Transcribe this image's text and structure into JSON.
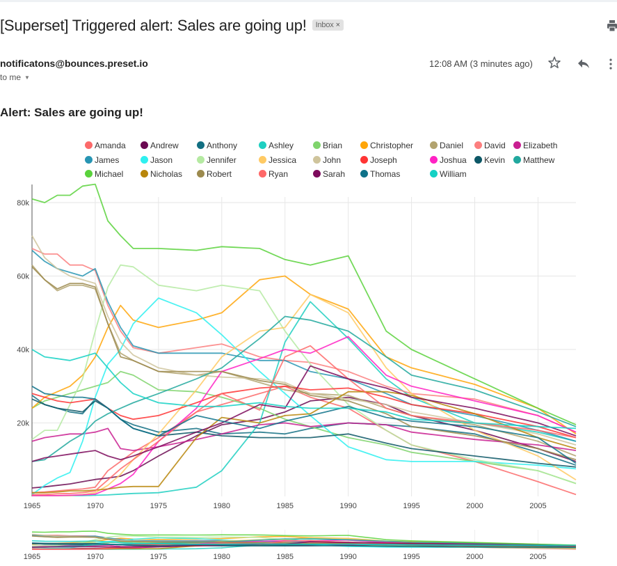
{
  "email": {
    "subject": "[Superset] Triggered alert: Sales are going up!",
    "label_badge": "Inbox",
    "label_remove": "×",
    "sender": "notificatons@bounces.preset.io",
    "recipient": "to me",
    "timestamp": "12:08 AM (3 minutes ago)",
    "icons": [
      "print-icon",
      "star-icon",
      "reply-icon",
      "more-vert-icon",
      "chevron-down-icon"
    ],
    "body_heading": "Alert: Sales are going up!"
  },
  "chart_data": {
    "type": "line",
    "title": "",
    "xlabel": "",
    "ylabel": "",
    "x_range": [
      1965,
      2008
    ],
    "ylim": [
      0,
      85000
    ],
    "x_ticks": [
      "1965",
      "1970",
      "1975",
      "1980",
      "1985",
      "1990",
      "1995",
      "2000",
      "2005"
    ],
    "y_ticks": [
      "20k",
      "40k",
      "60k",
      "80k"
    ],
    "grid": true,
    "legend_position": "top",
    "has_range_overview": true,
    "anchor_years": [
      1965,
      1966,
      1967,
      1968,
      1969,
      1970,
      1971,
      1972,
      1973,
      1975,
      1978,
      1980,
      1983,
      1985,
      1987,
      1990,
      1993,
      1995,
      2000,
      2005,
      2008
    ],
    "series": [
      {
        "name": "Amanda",
        "color": "#fc6a6a",
        "values": [
          1000,
          1200,
          1500,
          1800,
          2000,
          2500,
          7000,
          9500,
          12000,
          16000,
          23000,
          25000,
          28000,
          30000,
          27000,
          24000,
          18000,
          14000,
          9500,
          4000,
          500
        ]
      },
      {
        "name": "Andrew",
        "color": "#6b0a52",
        "values": [
          2300,
          2600,
          3000,
          3400,
          4000,
          4600,
          5000,
          5500,
          7000,
          11000,
          16500,
          19500,
          21000,
          23000,
          26000,
          27000,
          25000,
          22000,
          18000,
          13000,
          9500
        ]
      },
      {
        "name": "Anthony",
        "color": "#126f82",
        "values": [
          27500,
          25000,
          24000,
          23000,
          22500,
          26500,
          24000,
          21000,
          19500,
          17500,
          18500,
          17000,
          17500,
          17000,
          18500,
          20000,
          19500,
          19000,
          17000,
          12000,
          8500
        ]
      },
      {
        "name": "Ashley",
        "color": "#1fcfc1",
        "values": [
          200,
          200,
          200,
          200,
          200,
          300,
          400,
          600,
          800,
          1000,
          2500,
          7000,
          20000,
          42000,
          53000,
          43000,
          32000,
          27000,
          20000,
          17500,
          15000
        ]
      },
      {
        "name": "Brian",
        "color": "#7fd46c",
        "values": [
          24000,
          26000,
          27000,
          28000,
          29000,
          30000,
          31000,
          34000,
          33000,
          29000,
          28500,
          27000,
          24000,
          21000,
          19000,
          16000,
          14000,
          12000,
          9500,
          7000,
          3500
        ]
      },
      {
        "name": "Christopher",
        "color": "#ffa60a",
        "values": [
          24000,
          27000,
          28500,
          30000,
          33000,
          38000,
          46000,
          52000,
          48000,
          46000,
          48000,
          50000,
          59000,
          60000,
          55000,
          51000,
          38000,
          35000,
          30500,
          24000,
          17000
        ]
      },
      {
        "name": "Daniel",
        "color": "#b2a36f",
        "values": [
          63000,
          59000,
          56000,
          57500,
          57500,
          56500,
          47000,
          39000,
          37000,
          34000,
          33000,
          34000,
          31000,
          29000,
          28000,
          27500,
          24000,
          22000,
          19500,
          15000,
          11000
        ]
      },
      {
        "name": "David",
        "color": "#fc7f7f",
        "values": [
          67500,
          66000,
          66000,
          63000,
          63000,
          61500,
          52000,
          45000,
          40500,
          39000,
          40500,
          41500,
          38000,
          37000,
          36500,
          34000,
          30000,
          28000,
          26500,
          22000,
          17500
        ]
      },
      {
        "name": "Elizabeth",
        "color": "#c91f91",
        "values": [
          15000,
          16000,
          16500,
          17000,
          17000,
          17500,
          18500,
          13000,
          12500,
          13500,
          15500,
          17000,
          19500,
          20000,
          19000,
          20000,
          19500,
          17500,
          15500,
          14000,
          12500
        ]
      },
      {
        "name": "James",
        "color": "#2795b3",
        "values": [
          67000,
          64000,
          62000,
          61000,
          60000,
          62000,
          53000,
          46000,
          41000,
          39000,
          39000,
          39000,
          37000,
          37000,
          34000,
          32000,
          28000,
          25000,
          22000,
          18000,
          15000
        ]
      },
      {
        "name": "Jason",
        "color": "#2ef0f0",
        "values": [
          500,
          3000,
          5000,
          6500,
          15000,
          27000,
          36000,
          40000,
          47000,
          54000,
          50000,
          44000,
          34000,
          28000,
          22000,
          13500,
          10000,
          9500,
          9500,
          8500,
          7500
        ]
      },
      {
        "name": "Jennifer",
        "color": "#b5eaa2",
        "values": [
          15500,
          18000,
          18000,
          25000,
          32000,
          45000,
          57000,
          63000,
          62500,
          57500,
          56000,
          57500,
          56000,
          45000,
          36000,
          25000,
          18000,
          14000,
          10000,
          7000,
          3500
        ]
      },
      {
        "name": "Jessica",
        "color": "#ffca64",
        "values": [
          200,
          200,
          200,
          200,
          500,
          1000,
          3000,
          6000,
          10000,
          17000,
          29000,
          38000,
          45000,
          46000,
          55000,
          50000,
          35000,
          28000,
          18000,
          11000,
          4500
        ]
      },
      {
        "name": "John",
        "color": "#cfc49c",
        "values": [
          71000,
          65000,
          62000,
          60000,
          59000,
          58000,
          49000,
          42000,
          38500,
          35000,
          33000,
          32500,
          32000,
          31000,
          28000,
          26500,
          25000,
          23000,
          20000,
          17000,
          14000
        ]
      },
      {
        "name": "Joseph",
        "color": "#ff3434",
        "values": [
          28000,
          27000,
          26000,
          25500,
          26000,
          26500,
          24000,
          22000,
          21000,
          22000,
          25500,
          28000,
          29500,
          30000,
          29000,
          29500,
          27000,
          25000,
          22500,
          19000,
          16000
        ]
      },
      {
        "name": "Joshua",
        "color": "#ff22c4",
        "values": [
          200,
          200,
          200,
          300,
          400,
          600,
          2000,
          3500,
          6000,
          15000,
          24000,
          34000,
          37500,
          40000,
          39000,
          43500,
          33000,
          30000,
          26000,
          22000,
          17500
        ]
      },
      {
        "name": "Kevin",
        "color": "#0c5766",
        "values": [
          26500,
          25000,
          24000,
          23500,
          23000,
          26000,
          24000,
          21000,
          18500,
          16500,
          17500,
          16500,
          16000,
          16000,
          16000,
          17000,
          14500,
          13000,
          11000,
          9000,
          8000
        ]
      },
      {
        "name": "Matthew",
        "color": "#21a89e",
        "values": [
          9500,
          10000,
          12500,
          15000,
          17000,
          20500,
          22500,
          24000,
          25500,
          28000,
          32000,
          35000,
          43000,
          49000,
          48000,
          45000,
          38000,
          33000,
          29000,
          23000,
          19000
        ]
      },
      {
        "name": "Michael",
        "color": "#5ad23c",
        "values": [
          81000,
          80000,
          82000,
          82000,
          84500,
          85000,
          75000,
          71000,
          67500,
          67500,
          67000,
          68000,
          67500,
          64500,
          63000,
          65500,
          45000,
          40000,
          32000,
          24000,
          19500
        ]
      },
      {
        "name": "Nicholas",
        "color": "#b8860b",
        "values": [
          1000,
          1000,
          1200,
          1500,
          1500,
          1700,
          2000,
          2500,
          2700,
          2700,
          16000,
          21500,
          20000,
          22000,
          22500,
          28500,
          28500,
          27500,
          22500,
          16000,
          13000
        ]
      },
      {
        "name": "Robert",
        "color": "#9c8a4e",
        "values": [
          62500,
          59000,
          56500,
          58000,
          58000,
          57000,
          47000,
          38000,
          37000,
          34000,
          34000,
          34000,
          31500,
          30500,
          27500,
          26000,
          22500,
          19000,
          16500,
          13000,
          10000
        ]
      },
      {
        "name": "Ryan",
        "color": "#ff6868",
        "values": [
          500,
          500,
          700,
          800,
          1000,
          1500,
          4500,
          7500,
          10000,
          15000,
          23000,
          28000,
          23500,
          38000,
          41000,
          32000,
          24000,
          22000,
          20000,
          18000,
          16000
        ]
      },
      {
        "name": "Sarah",
        "color": "#7d0a5c",
        "values": [
          9500,
          10500,
          11000,
          11500,
          12000,
          12500,
          11000,
          10000,
          11000,
          13500,
          17500,
          20000,
          25000,
          24000,
          35500,
          32000,
          29500,
          27000,
          24000,
          20000,
          16500
        ]
      },
      {
        "name": "Thomas",
        "color": "#0e7289",
        "values": [
          30000,
          28000,
          27500,
          27000,
          27000,
          26500,
          24000,
          21000,
          18500,
          16500,
          22000,
          20500,
          18500,
          20500,
          22000,
          24500,
          21500,
          20500,
          19000,
          16000,
          9000
        ]
      },
      {
        "name": "William",
        "color": "#14d1c4",
        "values": [
          40000,
          38000,
          37500,
          37000,
          38000,
          39000,
          35000,
          31000,
          28000,
          25500,
          24500,
          24500,
          25500,
          24500,
          24000,
          24000,
          23000,
          21000,
          20000,
          19000,
          18500
        ]
      }
    ]
  }
}
